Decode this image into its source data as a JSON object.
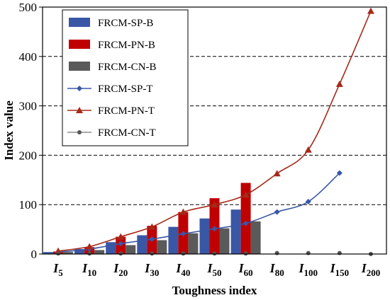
{
  "chart_data": {
    "type": "bar",
    "xlabel": "Toughness index",
    "ylabel": "Index value",
    "ylim": [
      0,
      500
    ],
    "yticks": [
      0,
      100,
      200,
      300,
      400,
      500
    ],
    "grid": "dashed horizontal at 100-400",
    "legend_position": "top-left",
    "categories": [
      {
        "base": "I",
        "sub": "5"
      },
      {
        "base": "I",
        "sub": "10"
      },
      {
        "base": "I",
        "sub": "20"
      },
      {
        "base": "I",
        "sub": "30"
      },
      {
        "base": "I",
        "sub": "40"
      },
      {
        "base": "I",
        "sub": "50"
      },
      {
        "base": "I",
        "sub": "60"
      },
      {
        "base": "I",
        "sub": "80"
      },
      {
        "base": "I",
        "sub": "100"
      },
      {
        "base": "I",
        "sub": "150"
      },
      {
        "base": "I",
        "sub": "200"
      }
    ],
    "bar_series": [
      {
        "name": "FRCM-SP-B",
        "color": "#3a57a6",
        "values": [
          4,
          10,
          24,
          38,
          55,
          72,
          90,
          null,
          null,
          null,
          null
        ]
      },
      {
        "name": "FRCM-PN-B",
        "color": "#c00000",
        "values": [
          5,
          14,
          35,
          57,
          85,
          113,
          144,
          null,
          null,
          null,
          null
        ]
      },
      {
        "name": "FRCM-CN-B",
        "color": "#5a5a5a",
        "values": [
          4,
          8,
          18,
          28,
          42,
          52,
          66,
          null,
          null,
          null,
          null
        ]
      }
    ],
    "line_series": [
      {
        "name": "FRCM-SP-T",
        "color": "#3a57a6",
        "marker": "diamond",
        "values": [
          4,
          10,
          21,
          30,
          41,
          51,
          62,
          85,
          106,
          164,
          null
        ]
      },
      {
        "name": "FRCM-PN-T",
        "color": "#a52a1a",
        "marker": "triangle",
        "values": [
          6,
          15,
          35,
          55,
          85,
          100,
          120,
          163,
          211,
          344,
          492
        ]
      },
      {
        "name": "FRCM-CN-T",
        "color": "#555555",
        "marker": "circle",
        "values": [
          1,
          1,
          1,
          1,
          1,
          1,
          1,
          2,
          2,
          2,
          0
        ]
      }
    ]
  }
}
